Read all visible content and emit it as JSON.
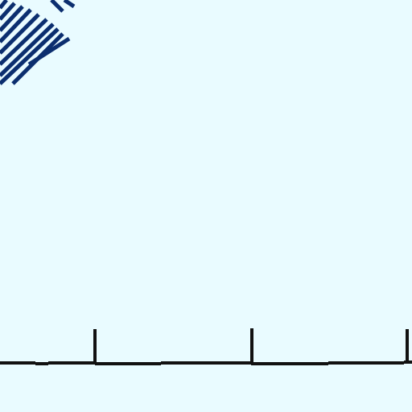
{
  "scene": {
    "background_color": "#e9fbff",
    "hatch_color": "#0b2e6f",
    "line_color": "#111111"
  }
}
